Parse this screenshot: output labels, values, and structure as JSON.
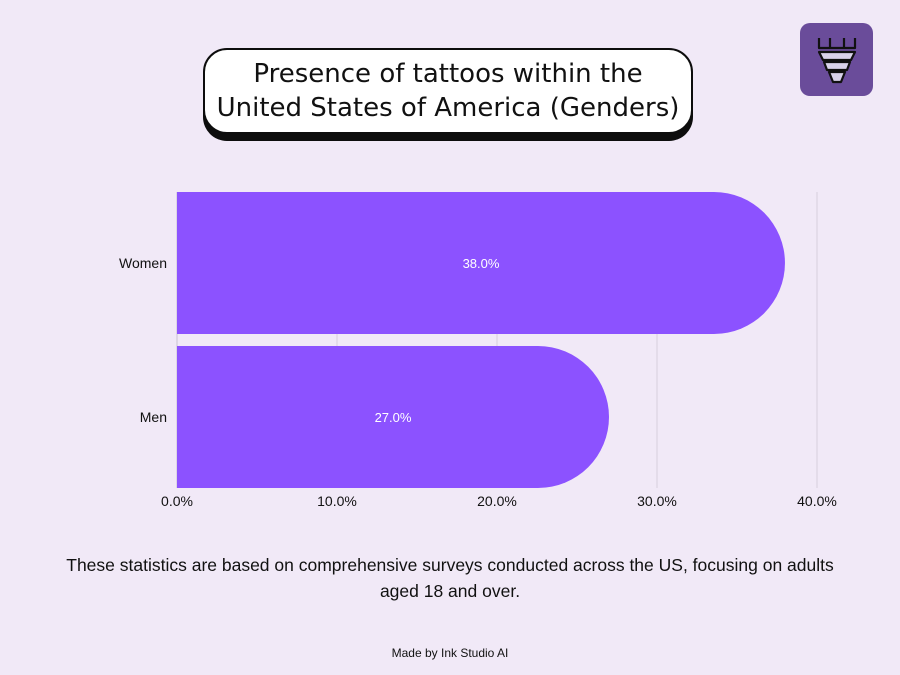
{
  "header": {
    "title": "Presence of tattoos within the United States of America (Genders)"
  },
  "logo": {
    "icon": "tattoo-machine-icon",
    "color": "#6a4c9a"
  },
  "chart_data": {
    "type": "bar",
    "orientation": "horizontal",
    "categories": [
      "Women",
      "Men"
    ],
    "values": [
      38.0,
      27.0
    ],
    "value_labels": [
      "38.0%",
      "27.0%"
    ],
    "xlim": [
      0,
      40
    ],
    "xticks": [
      0,
      10,
      20,
      30,
      40
    ],
    "xtick_labels": [
      "0.0%",
      "10.0%",
      "20.0%",
      "30.0%",
      "40.0%"
    ],
    "grid": true,
    "bar_color": "#8c52ff",
    "label_color": "#ffffff"
  },
  "caption": "These statistics are based on comprehensive surveys conducted across the US, focusing on adults aged 18 and over.",
  "footer": "Made by Ink Studio AI"
}
